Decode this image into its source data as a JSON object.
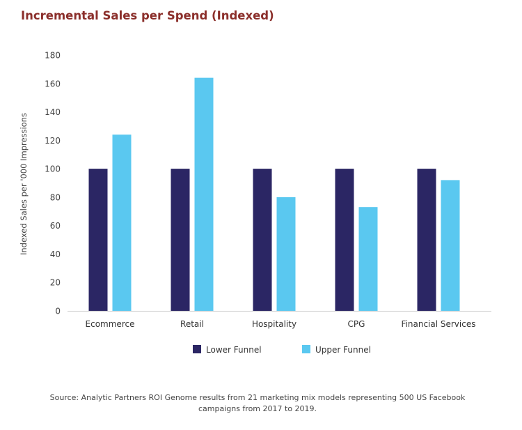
{
  "title": "Incremental Sales per Spend (Indexed)",
  "source_line1": "Source: Analytic Partners ROI Genome results from 21 marketing mix models representing 500 US Facebook",
  "source_line2": "campaigns from 2017 to 2019.",
  "chart_data": {
    "type": "bar",
    "title": "Incremental Sales per Spend (Indexed)",
    "xlabel": "",
    "ylabel": "Indexed Sales per '000 Impressions",
    "ylim": [
      0,
      180
    ],
    "yticks": [
      0,
      20,
      40,
      60,
      80,
      100,
      120,
      140,
      160,
      180
    ],
    "categories": [
      "Ecommerce",
      "Retail",
      "Hospitality",
      "CPG",
      "Financial Services"
    ],
    "series": [
      {
        "name": "Lower Funnel",
        "color": "#2b2664",
        "values": [
          100,
          100,
          100,
          100,
          100
        ]
      },
      {
        "name": "Upper Funnel",
        "color": "#5ac8f0",
        "values": [
          124,
          164,
          80,
          73,
          92
        ]
      }
    ],
    "grid": false,
    "legend": "bottom-center"
  }
}
